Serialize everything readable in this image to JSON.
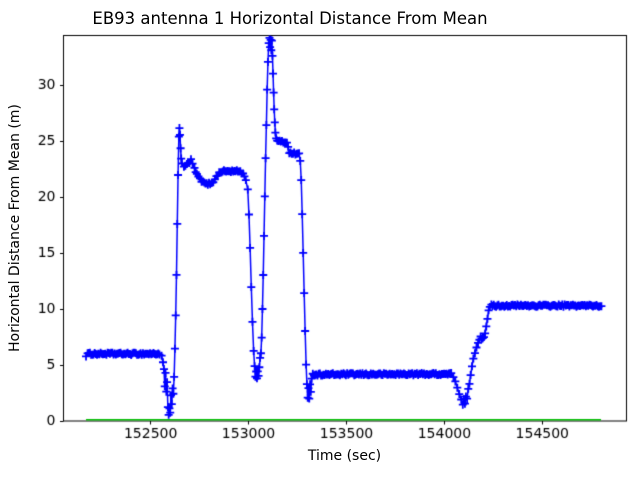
{
  "figure": {
    "background": "#ffffff"
  },
  "chart_data": {
    "type": "line",
    "title": "EB93 antenna 1 Horizontal Distance From Mean",
    "xlabel": "Time (sec)",
    "ylabel": "Horizontal Distance From Mean (m)",
    "xlim": [
      152055,
      154930
    ],
    "ylim": [
      0,
      34.42
    ],
    "xticks": [
      152500,
      153000,
      153500,
      154000,
      154500
    ],
    "yticks": [
      0,
      5,
      10,
      15,
      20,
      25,
      30
    ],
    "grid": false,
    "legend": "none",
    "axis_color": "#000000",
    "series": [
      {
        "name": "antenna-1-horizontal-distance",
        "color": "#0000ff",
        "marker": "plus",
        "marker_size": 8,
        "line_width": 1.5,
        "sample_interval_sec": 6,
        "jitter": 0.1,
        "keypoints": [
          [
            152170,
            5.85
          ],
          [
            152178,
            6.0
          ],
          [
            152545,
            6.0
          ],
          [
            152556,
            5.75
          ],
          [
            152563,
            5.2
          ],
          [
            152568,
            4.6
          ],
          [
            152572,
            3.1
          ],
          [
            152576,
            4.2
          ],
          [
            152580,
            2.6
          ],
          [
            152584,
            3.4
          ],
          [
            152588,
            1.3
          ],
          [
            152592,
            0.5
          ],
          [
            152596,
            1.1
          ],
          [
            152600,
            0.65
          ],
          [
            152604,
            2.2
          ],
          [
            152608,
            1.5
          ],
          [
            152612,
            3.0
          ],
          [
            152616,
            2.4
          ],
          [
            152620,
            4.0
          ],
          [
            152624,
            6.5
          ],
          [
            152628,
            9.5
          ],
          [
            152632,
            13.0
          ],
          [
            152636,
            17.5
          ],
          [
            152640,
            22.0
          ],
          [
            152644,
            25.3
          ],
          [
            152647,
            26.2
          ],
          [
            152650,
            25.6
          ],
          [
            152653,
            24.4
          ],
          [
            152656,
            23.4
          ],
          [
            152660,
            22.9
          ],
          [
            152670,
            22.7
          ],
          [
            152685,
            22.9
          ],
          [
            152698,
            23.1
          ],
          [
            152706,
            23.3
          ],
          [
            152714,
            23.0
          ],
          [
            152724,
            22.5
          ],
          [
            152736,
            22.0
          ],
          [
            152752,
            21.6
          ],
          [
            152768,
            21.3
          ],
          [
            152786,
            21.15
          ],
          [
            152804,
            21.2
          ],
          [
            152820,
            21.4
          ],
          [
            152836,
            21.8
          ],
          [
            152850,
            22.15
          ],
          [
            152862,
            22.3
          ],
          [
            152958,
            22.3
          ],
          [
            152972,
            22.05
          ],
          [
            152986,
            21.6
          ],
          [
            152996,
            20.6
          ],
          [
            153002,
            18.5
          ],
          [
            153008,
            15.5
          ],
          [
            153014,
            12.0
          ],
          [
            153020,
            8.8
          ],
          [
            153026,
            6.2
          ],
          [
            153031,
            4.8
          ],
          [
            153035,
            4.0
          ],
          [
            153039,
            4.5
          ],
          [
            153043,
            3.85
          ],
          [
            153047,
            4.4
          ],
          [
            153051,
            4.05
          ],
          [
            153055,
            4.9
          ],
          [
            153059,
            5.6
          ],
          [
            153063,
            6.1
          ],
          [
            153067,
            7.5
          ],
          [
            153071,
            10.0
          ],
          [
            153075,
            13.0
          ],
          [
            153079,
            16.5
          ],
          [
            153083,
            20.0
          ],
          [
            153087,
            23.5
          ],
          [
            153091,
            26.5
          ],
          [
            153095,
            29.5
          ],
          [
            153099,
            32.0
          ],
          [
            153103,
            33.8
          ],
          [
            153107,
            34.3
          ],
          [
            153110,
            33.4
          ],
          [
            153113,
            34.1
          ],
          [
            153116,
            33.2
          ],
          [
            153119,
            33.9
          ],
          [
            153122,
            32.6
          ],
          [
            153125,
            31.0
          ],
          [
            153128,
            29.3
          ],
          [
            153131,
            27.8
          ],
          [
            153134,
            26.6
          ],
          [
            153137,
            25.8
          ],
          [
            153141,
            25.3
          ],
          [
            153146,
            25.0
          ],
          [
            153152,
            24.95
          ],
          [
            153196,
            24.9
          ],
          [
            153202,
            24.5
          ],
          [
            153208,
            24.0
          ],
          [
            153214,
            23.9
          ],
          [
            153258,
            23.85
          ],
          [
            153264,
            23.2
          ],
          [
            153269,
            21.5
          ],
          [
            153274,
            18.5
          ],
          [
            153279,
            15.0
          ],
          [
            153284,
            11.5
          ],
          [
            153289,
            8.0
          ],
          [
            153294,
            5.0
          ],
          [
            153298,
            3.2
          ],
          [
            153302,
            2.0
          ],
          [
            153306,
            2.9
          ],
          [
            153310,
            2.1
          ],
          [
            153314,
            3.3
          ],
          [
            153318,
            2.7
          ],
          [
            153322,
            3.8
          ],
          [
            153328,
            4.15
          ],
          [
            154035,
            4.2
          ],
          [
            154046,
            4.0
          ],
          [
            154056,
            3.6
          ],
          [
            154066,
            3.0
          ],
          [
            154076,
            2.4
          ],
          [
            154086,
            1.9
          ],
          [
            154094,
            1.45
          ],
          [
            154100,
            1.9
          ],
          [
            154105,
            1.5
          ],
          [
            154110,
            2.2
          ],
          [
            154116,
            1.9
          ],
          [
            154122,
            2.8
          ],
          [
            154128,
            3.4
          ],
          [
            154134,
            4.1
          ],
          [
            154141,
            4.8
          ],
          [
            154148,
            5.5
          ],
          [
            154156,
            6.1
          ],
          [
            154164,
            6.6
          ],
          [
            154172,
            7.0
          ],
          [
            154179,
            7.35
          ],
          [
            154185,
            7.6
          ],
          [
            154190,
            7.3
          ],
          [
            154196,
            7.45
          ],
          [
            154202,
            7.55
          ],
          [
            154208,
            7.9
          ],
          [
            154214,
            8.5
          ],
          [
            154220,
            9.2
          ],
          [
            154226,
            9.8
          ],
          [
            154232,
            10.15
          ],
          [
            154240,
            10.3
          ],
          [
            154795,
            10.3
          ],
          [
            154802,
            10.25
          ]
        ]
      },
      {
        "name": "zero-reference-line",
        "color": "#00c000",
        "marker": "none",
        "marker_size": 0,
        "line_width": 1.5,
        "sample_interval_sec": 2600,
        "jitter": 0,
        "keypoints": [
          [
            152170,
            0.12
          ],
          [
            154800,
            0.12
          ]
        ]
      }
    ]
  }
}
